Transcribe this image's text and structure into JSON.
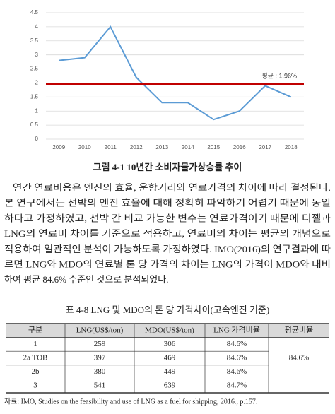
{
  "chart": {
    "type": "line",
    "x": [
      2009,
      2010,
      2011,
      2012,
      2013,
      2014,
      2015,
      2016,
      2017,
      2018
    ],
    "values": [
      2.8,
      2.9,
      4.0,
      2.2,
      1.3,
      1.3,
      0.7,
      1.0,
      1.9,
      1.5
    ],
    "color": "#5b9bd5",
    "xlim": [
      2008.5,
      2018.5
    ],
    "xticks": [
      2009,
      2010,
      2011,
      2012,
      2013,
      2014,
      2015,
      2016,
      2017,
      2018
    ],
    "ylim": [
      0,
      4.5
    ],
    "yticks": [
      0,
      0.5,
      1,
      1.5,
      2,
      2.5,
      3,
      3.5,
      4,
      4.5
    ],
    "grid": true,
    "average": {
      "value": 1.96,
      "label": "평균 : 1.96%",
      "color": "#c00000"
    }
  },
  "caption": "그림 4-1 10년간 소비자물가상승률 추이",
  "paragraph": [
    "연간 연료비용은 엔진의 효율, 운항거리와 연료가격의 차이에 따라 결정된다.",
    "본 연구에서는 선박의 엔진 효율에 대해 정확히 파악하기 어렵기 때문에 동일",
    "하다고 가정하였고, 선박 간 비교 가능한 변수는 연료가격이기 때문에 디젤과",
    "LNG의 연료비 차이를 기준으로 적용하고, 연료비의 차이는 평균의 개념으로",
    "적용하여 일관적인 분석이 가능하도록 가정하였다. IMO(2016)의 연구결과에 따",
    "르면 LNG와 MDO의 연료별 톤 당 가격의 차이는 LNG의 가격이 MDO와 대비",
    "하여 평균 84.6% 수준인 것으로 분석되었다."
  ],
  "table": {
    "title": "표 4-8 LNG 및 MDO의 톤 당 가격차이(고속엔진 기준)",
    "header": [
      "구분",
      "LNG(US$/ton)",
      "MDO(US$/ton)",
      "LNG 가격비율",
      "평균비율"
    ],
    "rows": [
      [
        "1",
        "259",
        "306",
        "84.6%"
      ],
      [
        "2a TOB",
        "397",
        "469",
        "84.6%"
      ],
      [
        "2b",
        "380",
        "449",
        "84.6%"
      ],
      [
        "3",
        "541",
        "639",
        "84.7%"
      ]
    ],
    "merged_cell": "84.6%"
  },
  "source": "자료: IMO, Studies on the feasibility and use of LNG as a fuel for shipping, 2016., p.157."
}
